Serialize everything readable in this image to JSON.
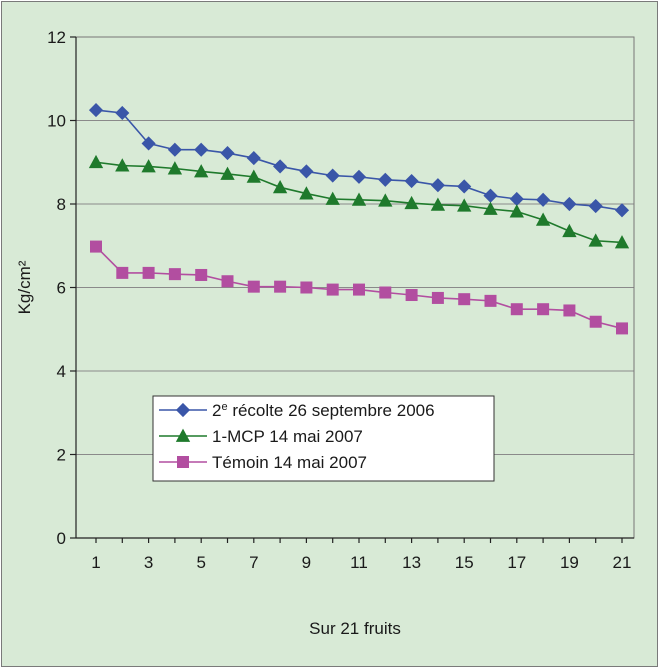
{
  "chart_data": {
    "type": "line",
    "title": "",
    "xlabel": "Sur 21 fruits",
    "ylabel": "Kg/cm²",
    "ylim": [
      0,
      12
    ],
    "yticks": [
      0,
      2,
      4,
      6,
      8,
      10,
      12
    ],
    "xlim": [
      1,
      21
    ],
    "xtick_labels": [
      "1",
      "3",
      "5",
      "7",
      "9",
      "11",
      "13",
      "15",
      "17",
      "19",
      "21"
    ],
    "grid": "horizontal",
    "legend_position": "lower-left inside plot",
    "x": [
      1,
      2,
      3,
      4,
      5,
      6,
      7,
      8,
      9,
      10,
      11,
      12,
      13,
      14,
      15,
      16,
      17,
      18,
      19,
      20,
      21
    ],
    "series": [
      {
        "name": "2e récolte 26 septembre 2006",
        "name_main": "2",
        "name_sup": "e",
        "name_rest": " récolte 26 septembre 2006",
        "color": "#3a56a8",
        "marker": "diamond",
        "values": [
          10.25,
          10.18,
          9.45,
          9.3,
          9.3,
          9.22,
          9.1,
          8.9,
          8.78,
          8.68,
          8.65,
          8.58,
          8.55,
          8.45,
          8.42,
          8.2,
          8.12,
          8.1,
          8.0,
          7.95,
          7.85
        ]
      },
      {
        "name": "1-MCP 14 mai 2007",
        "color": "#1f7a2c",
        "marker": "triangle",
        "values": [
          9.0,
          8.92,
          8.9,
          8.85,
          8.78,
          8.72,
          8.65,
          8.4,
          8.25,
          8.12,
          8.1,
          8.08,
          8.02,
          7.98,
          7.96,
          7.88,
          7.82,
          7.62,
          7.35,
          7.12,
          7.08
        ]
      },
      {
        "name": "Témoin 14 mai 2007",
        "color": "#b24ea0",
        "marker": "square",
        "values": [
          6.98,
          6.35,
          6.35,
          6.32,
          6.3,
          6.15,
          6.02,
          6.02,
          6.0,
          5.95,
          5.95,
          5.88,
          5.82,
          5.75,
          5.72,
          5.68,
          5.48,
          5.48,
          5.45,
          5.18,
          5.02
        ]
      }
    ]
  }
}
